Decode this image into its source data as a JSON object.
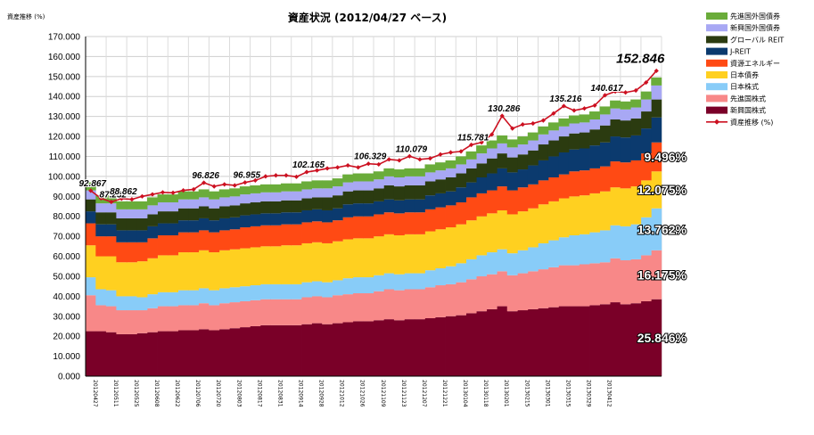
{
  "chart_data": {
    "type": "area",
    "title": "資産状況 (2012/04/27 ベース)",
    "ylabel": "資産推移 (%)",
    "ylim": [
      0,
      170
    ],
    "yticks": [
      "0.000",
      "10.000",
      "20.000",
      "30.000",
      "40.000",
      "50.000",
      "60.000",
      "70.000",
      "80.000",
      "90.000",
      "100.000",
      "110.000",
      "120.000",
      "130.000",
      "140.000",
      "150.000",
      "160.000",
      "170.000"
    ],
    "x_tick_labels": [
      "20120427",
      "20120511",
      "20120525",
      "20120608",
      "20120622",
      "20120706",
      "20120720",
      "20120803",
      "20120817",
      "20120831",
      "20120914",
      "20120928",
      "20121012",
      "20121026",
      "20121109",
      "20121123",
      "20121207",
      "20121221",
      "20130104",
      "20130118",
      "20130201",
      "20130215",
      "20130301",
      "20130315",
      "20130329",
      "20130412"
    ],
    "grid": true,
    "legend_position": "right",
    "colors": {
      "developed_bond": "#6aac3a",
      "emerging_bond": "#a8a8f4",
      "global_reit": "#2b3b10",
      "j_reit": "#0b3a6e",
      "resources_energy": "#ff4a14",
      "japan_bond": "#ffd020",
      "japan_stock": "#88ccf8",
      "developed_stock": "#f88888",
      "emerging_stock": "#7a0028",
      "line": "#cc1020"
    },
    "series": [
      {
        "name": "新興国株式",
        "key": "emerging_stock",
        "values": [
          22.5,
          22.5,
          22,
          21,
          21,
          21.5,
          22,
          22.5,
          22.5,
          23,
          23,
          23.5,
          23,
          23.5,
          24,
          24.5,
          25,
          25.5,
          25.5,
          25.5,
          25.5,
          26,
          26.5,
          26,
          26.5,
          27,
          27.5,
          27.5,
          28,
          28.5,
          28,
          28.5,
          28.5,
          29,
          29.5,
          30,
          30.5,
          31.5,
          32.5,
          33.5,
          35,
          32.5,
          33,
          33.5,
          34,
          34.5,
          35,
          35,
          35,
          35.5,
          36,
          37,
          36,
          36.5,
          37.5,
          38.5
        ]
      },
      {
        "name": "先進国株式",
        "key": "developed_stock",
        "values": [
          18,
          13,
          13,
          12,
          12,
          11.5,
          12,
          12.5,
          12.5,
          12.5,
          12.5,
          13,
          12.5,
          13,
          13,
          13,
          13,
          13,
          13,
          13,
          13,
          13.5,
          13.5,
          13.5,
          14,
          14,
          14,
          14,
          14.5,
          15,
          15,
          15,
          15,
          15.5,
          16,
          16,
          16.5,
          17,
          17.5,
          17.5,
          17.5,
          18,
          18.5,
          19,
          19.5,
          20,
          20.5,
          20.5,
          21,
          21,
          21,
          22,
          22,
          22,
          23,
          24.5
        ]
      },
      {
        "name": "日本株式",
        "key": "japan_stock",
        "values": [
          9,
          8,
          8,
          7,
          7,
          6.5,
          7,
          7,
          7,
          7.5,
          7.5,
          7.5,
          7.5,
          7.5,
          7.5,
          7.5,
          7.5,
          7.5,
          7.5,
          7.5,
          7.5,
          7.5,
          7.5,
          7.5,
          7.5,
          8,
          8,
          8,
          8,
          8,
          8,
          8,
          8,
          8.5,
          8.5,
          9,
          9.5,
          10,
          10.5,
          11,
          11,
          11,
          11.5,
          12,
          13,
          13.5,
          14,
          15,
          15,
          15.5,
          16,
          16.5,
          17,
          17.5,
          19,
          21
        ]
      },
      {
        "name": "日本債券",
        "key": "japan_bond",
        "values": [
          16,
          16.5,
          17,
          17,
          17,
          18,
          18,
          18.5,
          18.5,
          19,
          19,
          19,
          19,
          19,
          19,
          19,
          19,
          19,
          19,
          19.5,
          19.5,
          19.5,
          19.5,
          19.5,
          19.5,
          19.5,
          19.5,
          19.5,
          19.5,
          19.5,
          19.5,
          19.5,
          19.5,
          19.5,
          19.5,
          19.5,
          19.5,
          19.5,
          19.5,
          19.5,
          19.5,
          19.5,
          19.5,
          19.5,
          19.5,
          19.5,
          19.5,
          19.5,
          19.5,
          19.5,
          19.5,
          19,
          19,
          19,
          18.5,
          18.5
        ]
      },
      {
        "name": "資源エネルギー",
        "key": "resources_energy",
        "values": [
          11,
          10,
          10,
          10,
          10,
          9.5,
          10,
          10,
          10,
          10,
          10,
          10,
          10,
          10,
          10,
          10.5,
          10.5,
          10.5,
          10.5,
          10.5,
          10.5,
          10.5,
          10.5,
          10.5,
          10.5,
          11,
          11,
          11,
          11,
          11,
          11,
          11,
          11,
          11,
          11,
          11,
          11,
          11.5,
          11.5,
          11.5,
          12,
          12,
          12,
          12,
          12,
          12,
          12,
          12.5,
          12.5,
          12.5,
          12.5,
          13,
          13,
          13,
          13.5,
          14.5
        ]
      },
      {
        "name": "J-REIT",
        "key": "j_reit",
        "values": [
          6,
          6,
          6,
          6,
          6,
          6,
          6,
          6,
          6,
          6,
          6,
          6,
          6,
          6,
          6,
          6,
          6,
          6,
          6,
          6,
          6,
          6,
          6,
          6,
          6,
          6.5,
          6.5,
          6.5,
          6.5,
          6.5,
          6.5,
          6.5,
          6.5,
          7,
          7,
          7,
          7.5,
          7.5,
          8,
          8.5,
          9,
          9,
          9,
          9.5,
          10,
          10.5,
          11,
          11,
          11,
          11.5,
          12,
          12.5,
          12.5,
          12.5,
          12.5,
          12.5
        ]
      },
      {
        "name": "グローバル REIT",
        "key": "global_reit",
        "values": [
          6,
          6,
          6,
          6,
          6,
          6,
          6,
          6,
          6,
          6,
          6,
          6,
          6,
          6,
          6,
          6,
          6,
          6,
          6,
          6,
          6,
          6,
          6,
          6.5,
          6.5,
          6.5,
          6.5,
          6.5,
          6.5,
          7,
          7,
          7,
          7,
          7,
          7,
          7,
          7,
          7,
          7,
          7.5,
          7.5,
          7.5,
          7.5,
          7.5,
          8,
          8,
          8,
          8,
          8,
          8,
          8.5,
          8.5,
          8.5,
          8.5,
          8.5,
          9
        ]
      },
      {
        "name": "新興国国債券",
        "key": "emerging_bond",
        "values": [
          4.5,
          4.5,
          4.5,
          4.5,
          4.5,
          4.5,
          4.5,
          4.5,
          4.5,
          4.5,
          4.5,
          4.5,
          4.5,
          4.5,
          4.5,
          4.5,
          4.5,
          4.5,
          4.5,
          4.5,
          4.5,
          4.5,
          4.5,
          4.5,
          4.5,
          4.5,
          4.5,
          4.5,
          4.5,
          4.5,
          4.5,
          4.5,
          4.5,
          4.5,
          4.5,
          4.5,
          4.5,
          4.5,
          5,
          5,
          5,
          5,
          5,
          5,
          5,
          5,
          5,
          5,
          5,
          5,
          5.5,
          5.5,
          5.5,
          5.5,
          6,
          7
        ]
      },
      {
        "name": "先進国国債券",
        "key": "developed_bond",
        "values": [
          4,
          4,
          4,
          4,
          4,
          4,
          4,
          4,
          4,
          4,
          4,
          4,
          4,
          4,
          4,
          4,
          4,
          4,
          4,
          4,
          4,
          4,
          4,
          4,
          4,
          4,
          4,
          4,
          4,
          4,
          4,
          4,
          4,
          4,
          4,
          4,
          4,
          4,
          4,
          4,
          4,
          4,
          4,
          4,
          4,
          4,
          4,
          4,
          4,
          4,
          4,
          4,
          4,
          4,
          4,
          4
        ]
      }
    ],
    "line": {
      "name": "資産推移 (%)",
      "values": [
        92.867,
        89,
        87.232,
        88.862,
        88.5,
        90,
        91,
        92,
        91.8,
        93,
        93.5,
        96.826,
        95,
        96,
        95.5,
        96.955,
        98,
        100,
        100.5,
        100.5,
        99.8,
        102.165,
        103,
        104,
        104.5,
        105.5,
        104.5,
        106.329,
        106,
        108.5,
        108,
        110.079,
        108.5,
        109,
        111,
        112,
        112.5,
        115.781,
        117,
        121,
        130.286,
        124,
        126,
        126.5,
        128,
        131.5,
        135.216,
        133,
        134,
        135.5,
        140.617,
        142.5,
        142,
        143,
        147,
        152.846
      ]
    },
    "point_labels": [
      {
        "index": 0,
        "text": "92.867"
      },
      {
        "index": 2,
        "text": "87.232"
      },
      {
        "index": 3,
        "text": "88.862"
      },
      {
        "index": 11,
        "text": "96.826"
      },
      {
        "index": 15,
        "text": "96.955"
      },
      {
        "index": 21,
        "text": "102.165"
      },
      {
        "index": 27,
        "text": "106.329"
      },
      {
        "index": 31,
        "text": "110.079"
      },
      {
        "index": 37,
        "text": "115.781"
      },
      {
        "index": 40,
        "text": "130.286"
      },
      {
        "index": 46,
        "text": "135.216"
      },
      {
        "index": 50,
        "text": "140.617"
      },
      {
        "index": 55,
        "text": "152.846"
      }
    ],
    "share_labels": [
      {
        "text": "25.846%",
        "series": "emerging_stock"
      },
      {
        "text": "16.175%",
        "series": "developed_stock"
      },
      {
        "text": "13.762%",
        "series": "japan_stock"
      },
      {
        "text": "12.075%",
        "series": "japan_bond"
      },
      {
        "text": "9.496%",
        "series": "resources_energy"
      }
    ],
    "legend": [
      {
        "label": "先進国外国債券",
        "key": "developed_bond",
        "kind": "area"
      },
      {
        "label": "新興国外国債券",
        "key": "emerging_bond",
        "kind": "area"
      },
      {
        "label": "グローバル REIT",
        "key": "global_reit",
        "kind": "area"
      },
      {
        "label": "J-REIT",
        "key": "j_reit",
        "kind": "area"
      },
      {
        "label": "資源エネルギー",
        "key": "resources_energy",
        "kind": "area"
      },
      {
        "label": "日本債券",
        "key": "japan_bond",
        "kind": "area"
      },
      {
        "label": "日本株式",
        "key": "japan_stock",
        "kind": "area"
      },
      {
        "label": "先進国株式",
        "key": "developed_stock",
        "kind": "area"
      },
      {
        "label": "新興国株式",
        "key": "emerging_stock",
        "kind": "area"
      },
      {
        "label": "資産推移 (%)",
        "key": "line",
        "kind": "line"
      }
    ]
  }
}
